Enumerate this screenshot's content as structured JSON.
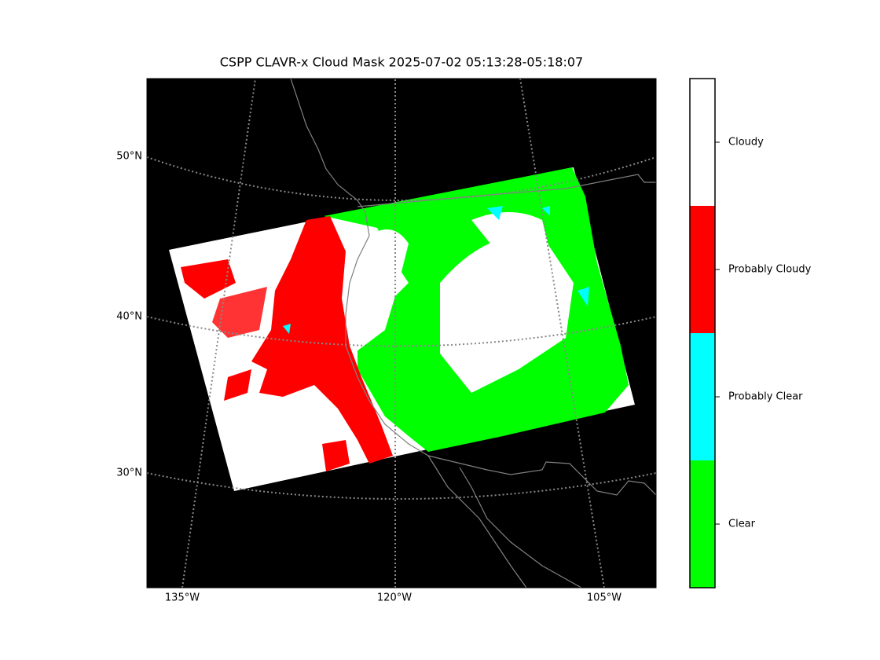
{
  "title": "CSPP CLAVR-x Cloud Mask 2025-07-02 05:13:28-05:18:07",
  "map": {
    "lat_labels": [
      "50°N",
      "40°N",
      "30°N"
    ],
    "lon_labels": [
      "135°W",
      "120°W",
      "105°W"
    ]
  },
  "colorbar": {
    "classes": [
      {
        "label": "Cloudy",
        "color": "#ffffff"
      },
      {
        "label": "Probably Cloudy",
        "color": "#ff0000"
      },
      {
        "label": "Probably Clear",
        "color": "#00ffff"
      },
      {
        "label": "Clear",
        "color": "#00ff00"
      }
    ]
  }
}
